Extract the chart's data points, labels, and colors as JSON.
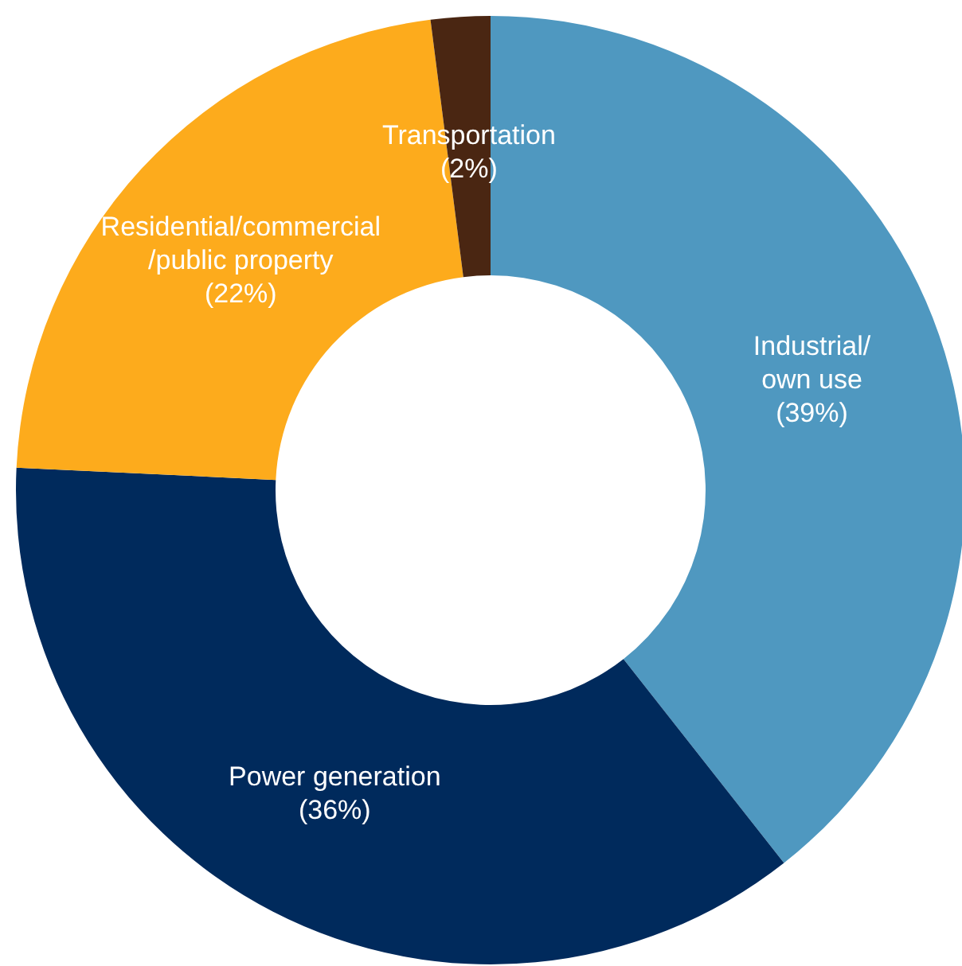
{
  "chart_data": {
    "type": "donut",
    "categories": [
      "Industrial/\nown use",
      "Power generation",
      "Residential/commercial\n/public property",
      "Transportation"
    ],
    "values": [
      39,
      36,
      22,
      2
    ],
    "colors": [
      "#4f98c0",
      "#002a5c",
      "#fdab1c",
      "#4a2612"
    ],
    "value_labels": [
      "(39%)",
      "(36%)",
      "(22%)",
      "(2%)"
    ],
    "legend": false
  }
}
